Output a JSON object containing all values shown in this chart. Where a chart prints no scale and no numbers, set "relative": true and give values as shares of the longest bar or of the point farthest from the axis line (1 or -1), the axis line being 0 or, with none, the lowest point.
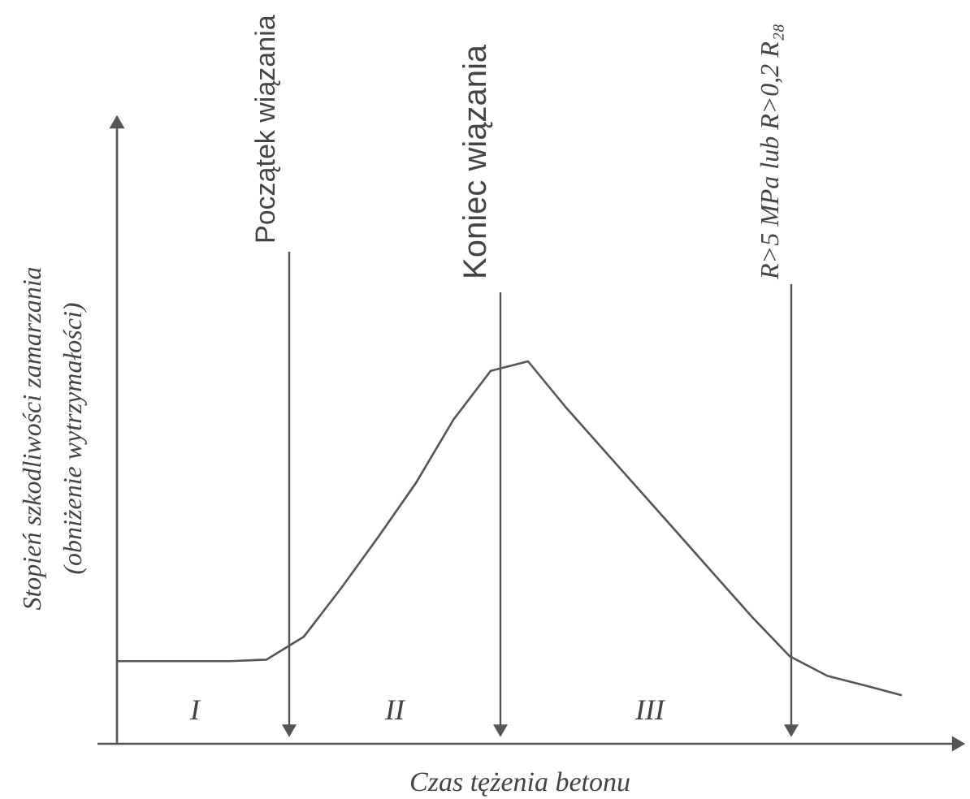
{
  "chart_data": {
    "type": "line",
    "relative": true,
    "color": "#555555",
    "categories": [
      null,
      null,
      null,
      null,
      null,
      null,
      null,
      null,
      null,
      null,
      null,
      null,
      null,
      null,
      null,
      null,
      null,
      null,
      null,
      null,
      null,
      null
    ],
    "values": [
      0.216,
      0.216,
      0.216,
      0.216,
      0.22,
      0.28,
      0.407,
      0.542,
      0.682,
      0.847,
      0.975,
      1.0,
      0.881,
      0.771,
      0.661,
      0.551,
      0.441,
      0.331,
      0.229,
      0.178,
      0.153,
      0.127
    ],
    "xlabel": "Czas tężenia betonu",
    "ylabel": "Stopień szkodliwości zamarzania\n(obniżenie wytrzymałości)",
    "annotations": [
      "Początek wiązania",
      "Koniec wiązania",
      "R>5 MPa lub R>0,2 R₂₈",
      "I",
      "II",
      "III"
    ]
  }
}
